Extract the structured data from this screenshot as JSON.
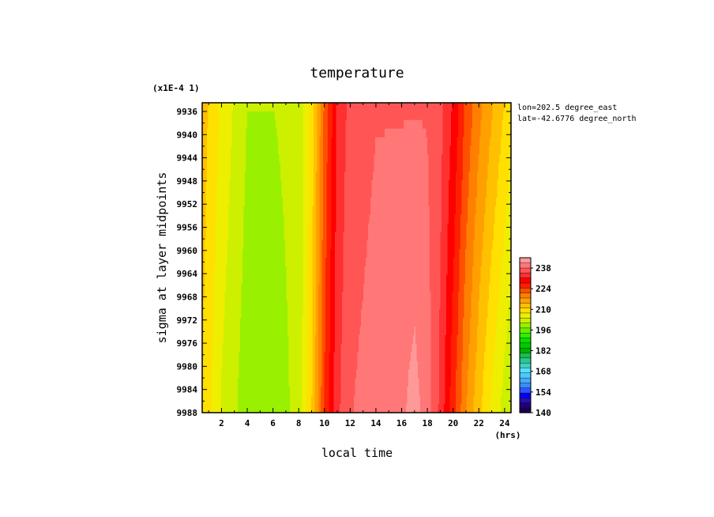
{
  "chart_data": {
    "type": "heatmap",
    "title": "temperature",
    "xlabel": "local time",
    "ylabel": "sigma at layer midpoints",
    "x_unit": "(hrs)",
    "y_scale_note": "(x1E-4 1)",
    "x_ticks": [
      2,
      4,
      6,
      8,
      10,
      12,
      14,
      16,
      18,
      20,
      22,
      24
    ],
    "y_ticks": [
      9936,
      9940,
      9944,
      9948,
      9952,
      9956,
      9960,
      9964,
      9968,
      9972,
      9976,
      9980,
      9984,
      9988
    ],
    "xlim": [
      0.5,
      24.5
    ],
    "ylim": [
      9988,
      9934.5
    ],
    "annotations": [
      "lon=202.5 degree_east",
      "lat=-42.6776 degree_north"
    ],
    "colorbar": {
      "ticks": [
        140,
        154,
        168,
        182,
        196,
        210,
        224,
        238
      ],
      "range": [
        140,
        245
      ],
      "colors": [
        "#1a0052",
        "#22007a",
        "#2a0fb0",
        "#0000ff",
        "#2a55ff",
        "#3a8cff",
        "#44aaff",
        "#4dc8ff",
        "#55e0ff",
        "#40d0c0",
        "#2ac890",
        "#14c050",
        "#00b000",
        "#00cc00",
        "#00e000",
        "#33ee00",
        "#66f000",
        "#99f000",
        "#ccf000",
        "#eeee00",
        "#ffe000",
        "#ffc000",
        "#ffa000",
        "#ff8000",
        "#ff5000",
        "#ff2000",
        "#ff0000",
        "#ff3030",
        "#ff5555",
        "#ff7777",
        "#ff9999"
      ]
    },
    "profiles": {
      "hours": [
        0.5,
        2,
        4,
        6,
        8,
        9,
        10,
        11,
        12,
        14,
        16,
        17,
        18,
        19,
        20,
        21,
        22,
        23,
        24,
        24.5
      ],
      "top_sigma": 9934.5,
      "bottom_sigma": 9988,
      "top_values": [
        213,
        207,
        201,
        201,
        202,
        209,
        222,
        232,
        236,
        238,
        238,
        238,
        238,
        236,
        231,
        224,
        219,
        215,
        211,
        209
      ],
      "bottom_values": [
        211,
        204,
        199,
        199,
        202,
        211,
        225,
        234,
        238,
        240,
        241,
        243,
        240,
        234,
        226,
        218,
        212,
        207,
        203,
        201
      ]
    }
  }
}
